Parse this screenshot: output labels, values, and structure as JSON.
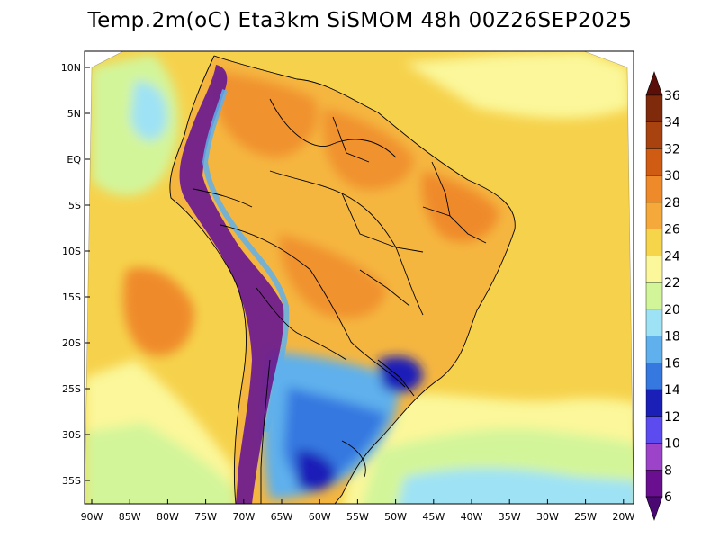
{
  "title": "Temp.2m(oC) Eta3km SiSMOM 48h 00Z26SEP2025",
  "axes": {
    "lat_labels": [
      "10N",
      "5N",
      "EQ",
      "5S",
      "10S",
      "15S",
      "20S",
      "25S",
      "30S",
      "35S"
    ],
    "lon_labels": [
      "90W",
      "85W",
      "80W",
      "75W",
      "70W",
      "65W",
      "60W",
      "55W",
      "50W",
      "45W",
      "40W",
      "35W",
      "30W",
      "25W",
      "20W"
    ]
  },
  "colorbar": {
    "labels": [
      "36",
      "34",
      "32",
      "30",
      "28",
      "26",
      "24",
      "22",
      "20",
      "18",
      "16",
      "14",
      "12",
      "10",
      "8",
      "6"
    ],
    "colors": [
      "#5a0f08",
      "#7f2a0a",
      "#a8430f",
      "#d05b12",
      "#ef8a2a",
      "#f5a93a",
      "#f7d54a",
      "#fbf79a",
      "#d3f59a",
      "#9ee2f5",
      "#5fb0ec",
      "#3478e0",
      "#1a1fb8",
      "#5c4cf0",
      "#9c43c9",
      "#6a0f8f",
      "#4a0873"
    ]
  },
  "colors": {
    "ocean_warm": "#f6d24c",
    "ocean_hot": "#ef8a2a",
    "ocean_cool": "#fbf79a",
    "ocean_cold": "#d3f59a",
    "land_hot": "#f0922e",
    "land_warm": "#f5b640",
    "andes": "#6a1a8f",
    "south_cold": "#3478e0",
    "south_colder": "#1a1fb8",
    "border": "#000000"
  }
}
